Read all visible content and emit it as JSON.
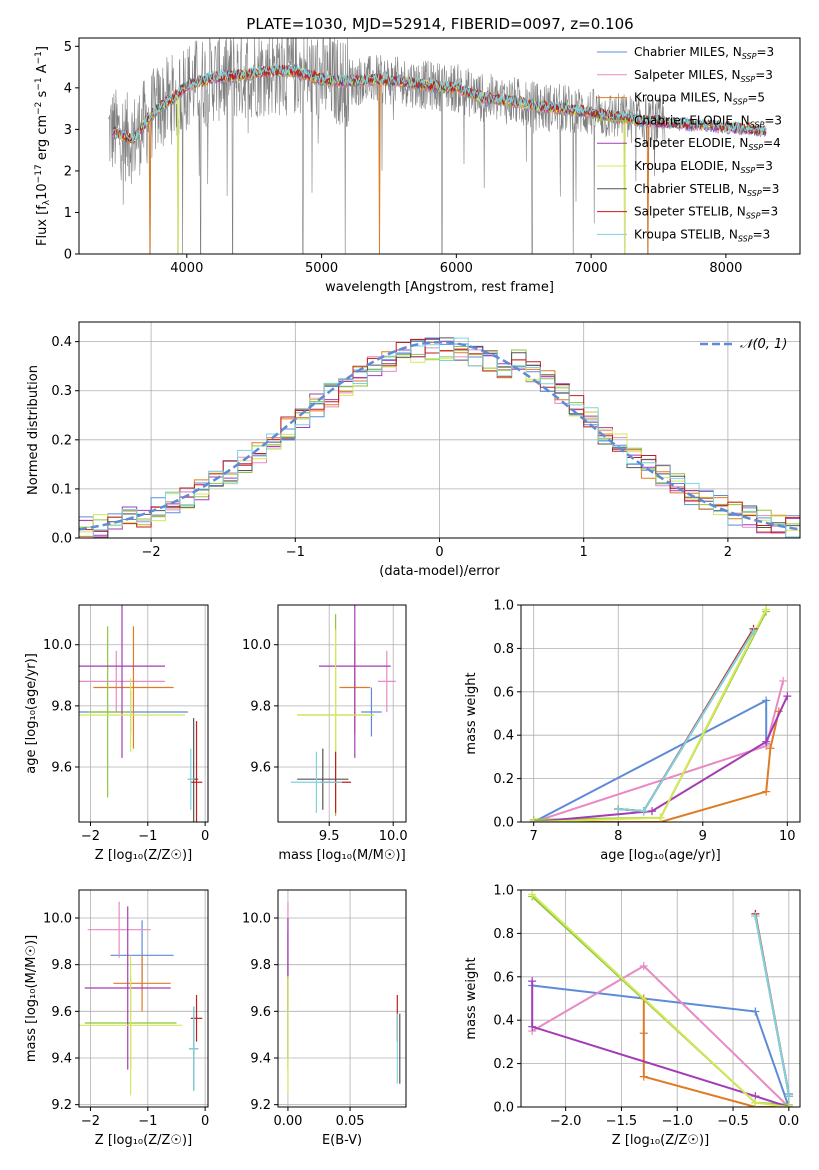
{
  "figure": {
    "title": "PLATE=1030, MJD=52914, FIBERID=0097, z=0.106"
  },
  "series": [
    {
      "name": "Chabrier MILES",
      "nssp": "3",
      "color": "#5d8bd8"
    },
    {
      "name": "Salpeter MILES",
      "nssp": "3",
      "color": "#e88ac3"
    },
    {
      "name": "Kroupa MILES",
      "nssp": "5",
      "color": "#e07b24"
    },
    {
      "name": "Chabrier ELODIE",
      "nssp": "3",
      "color": "#8ec63f"
    },
    {
      "name": "Salpeter ELODIE",
      "nssp": "4",
      "color": "#a43cb5"
    },
    {
      "name": "Kroupa ELODIE",
      "nssp": "3",
      "color": "#d4e85a"
    },
    {
      "name": "Chabrier STELIB",
      "nssp": "3",
      "color": "#555555"
    },
    {
      "name": "Salpeter STELIB",
      "nssp": "3",
      "color": "#c21e1e"
    },
    {
      "name": "Kroupa STELIB",
      "nssp": "3",
      "color": "#7fd3df"
    }
  ],
  "chart_data": [
    {
      "id": "spectrum",
      "type": "line",
      "xlabel": "wavelength [Angstrom, rest frame]",
      "ylabel_parts": [
        "Flux [f",
        "λ",
        "10",
        "−17",
        " erg cm",
        "−2",
        " s",
        "−1",
        " A",
        "−1",
        "]"
      ],
      "xlim": [
        3200,
        8550
      ],
      "ylim": [
        0,
        5.2
      ],
      "xticks": [
        4000,
        5000,
        6000,
        7000,
        8000
      ],
      "yticks": [
        0,
        1,
        2,
        3,
        4,
        5
      ],
      "grid": false,
      "legend": "right",
      "data_color": "#808080",
      "continuum": {
        "x": [
          3450,
          3600,
          3700,
          3800,
          3900,
          4000,
          4200,
          4400,
          4600,
          4800,
          5000,
          5200,
          5400,
          5600,
          5800,
          6000,
          6200,
          6400,
          6600,
          6800,
          7000,
          7200,
          7400,
          7600,
          7800,
          8000,
          8200,
          8300
        ],
        "y": [
          2.95,
          2.75,
          3.2,
          3.55,
          3.75,
          4.05,
          4.25,
          4.3,
          4.4,
          4.4,
          4.2,
          4.15,
          4.2,
          4.15,
          4.05,
          4.0,
          3.75,
          3.7,
          3.55,
          3.5,
          3.4,
          3.3,
          3.2,
          3.15,
          3.1,
          3.05,
          3.0,
          2.95
        ]
      },
      "absorption_lines": [
        3727,
        3934,
        3969,
        4102,
        4340,
        4861,
        5175,
        5430,
        5893,
        6563,
        6867,
        7250,
        7420
      ]
    },
    {
      "id": "residuals",
      "type": "bar",
      "xlabel": "(data-model)/error",
      "ylabel": "Normed distribution",
      "xlim": [
        -2.5,
        2.5
      ],
      "ylim": [
        0,
        0.44
      ],
      "xticks": [
        -2,
        -1,
        0,
        1,
        2
      ],
      "yticks": [
        0.0,
        0.1,
        0.2,
        0.3,
        0.4
      ],
      "grid": true,
      "legend": "top-right",
      "gaussian_label": "𝒩(0, 1)",
      "gaussian_color": "#5d8bd8",
      "bin_width": 0.1
    },
    {
      "id": "age-vs-Z",
      "type": "scatter",
      "xlabel": "Z [log₁₀(Z/Z☉)]",
      "ylabel": "age  [log₁₀(age/yr)]",
      "xlim": [
        -2.2,
        0.05
      ],
      "ylim": [
        9.42,
        10.13
      ],
      "xticks": [
        -2,
        -1,
        0
      ],
      "yticks": [
        9.6,
        9.8,
        10.0
      ],
      "grid": true,
      "points": [
        {
          "s": 0,
          "x": -1.3,
          "xe": 1.0,
          "y": 9.78,
          "ye": 0.07
        },
        {
          "s": 1,
          "x": -1.55,
          "xe": 0.85,
          "y": 9.88,
          "ye": 0.1
        },
        {
          "s": 2,
          "x": -1.25,
          "xe": 0.7,
          "y": 9.86,
          "ye": 0.2
        },
        {
          "s": 3,
          "x": -1.7,
          "xe": 0.35,
          "y": 9.78,
          "ye": 0.28
        },
        {
          "s": 4,
          "x": -1.45,
          "xe": 0.75,
          "y": 9.93,
          "ye": 0.3
        },
        {
          "s": 5,
          "x": -1.3,
          "xe": 0.95,
          "y": 9.77,
          "ye": 0.12
        },
        {
          "s": 6,
          "x": -0.2,
          "xe": 0.08,
          "y": 9.56,
          "ye": 0.2
        },
        {
          "s": 7,
          "x": -0.15,
          "xe": 0.1,
          "y": 9.55,
          "ye": 0.2
        },
        {
          "s": 8,
          "x": -0.25,
          "xe": 0.06,
          "y": 9.56,
          "ye": 0.1
        }
      ]
    },
    {
      "id": "age-vs-mass",
      "type": "scatter",
      "xlabel": "mass [log₁₀(M/M☉)]",
      "ylabel": "",
      "xlim": [
        9.1,
        10.1
      ],
      "ylim": [
        9.42,
        10.13
      ],
      "xticks": [
        9.5,
        10.0
      ],
      "yticks": [
        9.6,
        9.8,
        10.0
      ],
      "grid": true,
      "points": [
        {
          "s": 0,
          "x": 9.83,
          "xe": 0.08,
          "y": 9.78,
          "ye": 0.08
        },
        {
          "s": 1,
          "x": 9.95,
          "xe": 0.07,
          "y": 9.88,
          "ye": 0.1
        },
        {
          "s": 2,
          "x": 9.7,
          "xe": 0.12,
          "y": 9.86,
          "ye": 0.15
        },
        {
          "s": 3,
          "x": 9.55,
          "xe": 0.3,
          "y": 9.77,
          "ye": 0.33
        },
        {
          "s": 4,
          "x": 9.7,
          "xe": 0.28,
          "y": 9.93,
          "ye": 0.3
        },
        {
          "s": 5,
          "x": 9.55,
          "xe": 0.3,
          "y": 9.77,
          "ye": 0.28
        },
        {
          "s": 6,
          "x": 9.45,
          "xe": 0.2,
          "y": 9.56,
          "ye": 0.1
        },
        {
          "s": 7,
          "x": 9.55,
          "xe": 0.12,
          "y": 9.55,
          "ye": 0.1
        },
        {
          "s": 8,
          "x": 9.4,
          "xe": 0.2,
          "y": 9.55,
          "ye": 0.1
        }
      ]
    },
    {
      "id": "massweight-vs-age",
      "type": "line",
      "xlabel": "age  [log₁₀(age/yr)]",
      "ylabel": "mass weight",
      "xlim": [
        6.85,
        10.15
      ],
      "ylim": [
        0,
        1.0
      ],
      "xticks": [
        7,
        8,
        9,
        10
      ],
      "yticks": [
        0.0,
        0.2,
        0.4,
        0.6,
        0.8,
        1.0
      ],
      "grid": true,
      "series_points": [
        {
          "s": 0,
          "x": [
            7.0,
            9.75,
            9.75
          ],
          "y": [
            0.0,
            0.56,
            0.36
          ]
        },
        {
          "s": 1,
          "x": [
            7.0,
            9.75,
            9.95
          ],
          "y": [
            0.0,
            0.35,
            0.65
          ]
        },
        {
          "s": 2,
          "x": [
            7.0,
            8.5,
            9.75,
            9.8,
            9.9
          ],
          "y": [
            0.0,
            0.0,
            0.14,
            0.34,
            0.51
          ]
        },
        {
          "s": 3,
          "x": [
            7.0,
            8.5,
            9.75
          ],
          "y": [
            0.01,
            0.02,
            0.97
          ]
        },
        {
          "s": 4,
          "x": [
            7.0,
            8.4,
            9.75,
            10.0
          ],
          "y": [
            0.0,
            0.05,
            0.37,
            0.58
          ]
        },
        {
          "s": 5,
          "x": [
            7.0,
            8.5,
            9.75
          ],
          "y": [
            0.0,
            0.02,
            0.98
          ]
        },
        {
          "s": 6,
          "x": [
            8.0,
            8.3,
            9.6
          ],
          "y": [
            0.06,
            0.05,
            0.88
          ]
        },
        {
          "s": 7,
          "x": [
            8.0,
            8.3,
            9.6
          ],
          "y": [
            0.06,
            0.05,
            0.89
          ]
        },
        {
          "s": 8,
          "x": [
            8.0,
            8.3,
            9.6
          ],
          "y": [
            0.06,
            0.05,
            0.88
          ]
        }
      ]
    },
    {
      "id": "mass-vs-Z",
      "type": "scatter",
      "xlabel": "Z [log₁₀(Z/Z☉)]",
      "ylabel": "mass [log₁₀(M/M☉)]",
      "xlim": [
        -2.2,
        0.05
      ],
      "ylim": [
        9.19,
        10.12
      ],
      "xticks": [
        -2,
        -1,
        0
      ],
      "yticks": [
        9.2,
        9.4,
        9.6,
        9.8,
        10.0
      ],
      "grid": true,
      "points": [
        {
          "s": 0,
          "x": -1.1,
          "xe": 0.55,
          "y": 9.84,
          "ye": 0.15
        },
        {
          "s": 1,
          "x": -1.5,
          "xe": 0.55,
          "y": 9.95,
          "ye": 0.12
        },
        {
          "s": 2,
          "x": -1.1,
          "xe": 0.5,
          "y": 9.72,
          "ye": 0.12
        },
        {
          "s": 3,
          "x": -1.3,
          "xe": 0.8,
          "y": 9.55,
          "ye": 0.2
        },
        {
          "s": 4,
          "x": -1.35,
          "xe": 0.75,
          "y": 9.7,
          "ye": 0.35
        },
        {
          "s": 5,
          "x": -1.3,
          "xe": 0.9,
          "y": 9.54,
          "ye": 0.3
        },
        {
          "s": 6,
          "x": -0.2,
          "xe": 0.08,
          "y": 9.44,
          "ye": 0.18
        },
        {
          "s": 7,
          "x": -0.15,
          "xe": 0.1,
          "y": 9.57,
          "ye": 0.1
        },
        {
          "s": 8,
          "x": -0.2,
          "xe": 0.08,
          "y": 9.44,
          "ye": 0.18
        }
      ]
    },
    {
      "id": "mass-vs-ebv",
      "type": "scatter",
      "xlabel": "E(B-V)",
      "ylabel": "",
      "xlim": [
        -0.008,
        0.095
      ],
      "ylim": [
        9.19,
        10.12
      ],
      "xticks": [
        0.0,
        0.05
      ],
      "yticks": [
        9.2,
        9.4,
        9.6,
        9.8,
        10.0
      ],
      "grid": true,
      "points": [
        {
          "s": 0,
          "x": 0.0,
          "xe": 0,
          "y": 9.84,
          "ye": 0.1
        },
        {
          "s": 1,
          "x": 0.0,
          "xe": 0,
          "y": 9.95,
          "ye": 0.12
        },
        {
          "s": 2,
          "x": 0.0,
          "xe": 0,
          "y": 9.72,
          "ye": 0.12
        },
        {
          "s": 3,
          "x": 0.0,
          "xe": 0,
          "y": 9.55,
          "ye": 0.2
        },
        {
          "s": 4,
          "x": 0.0,
          "xe": 0,
          "y": 9.7,
          "ye": 0.3
        },
        {
          "s": 5,
          "x": 0.0,
          "xe": 0,
          "y": 9.5,
          "ye": 0.25
        },
        {
          "s": 6,
          "x": 0.09,
          "xe": 0,
          "y": 9.44,
          "ye": 0.15
        },
        {
          "s": 7,
          "x": 0.088,
          "xe": 0,
          "y": 9.57,
          "ye": 0.1
        },
        {
          "s": 8,
          "x": 0.088,
          "xe": 0,
          "y": 9.44,
          "ye": 0.15
        }
      ]
    },
    {
      "id": "massweight-vs-Z",
      "type": "line",
      "xlabel": "Z [log₁₀(Z/Z☉)]",
      "ylabel": "mass weight",
      "xlim": [
        -2.4,
        0.1
      ],
      "ylim": [
        0,
        1.0
      ],
      "xticks": [
        -2.0,
        -1.5,
        -1.0,
        -0.5,
        0.0
      ],
      "yticks": [
        0.0,
        0.2,
        0.4,
        0.6,
        0.8,
        1.0
      ],
      "grid": true,
      "series_points": [
        {
          "s": 0,
          "x": [
            -2.3,
            -0.3,
            0.0
          ],
          "y": [
            0.56,
            0.44,
            0.0
          ]
        },
        {
          "s": 1,
          "x": [
            -2.3,
            -1.3,
            0.0
          ],
          "y": [
            0.35,
            0.65,
            0.0
          ]
        },
        {
          "s": 2,
          "x": [
            -1.3,
            -1.3,
            -1.3,
            -0.3,
            0.0
          ],
          "y": [
            0.5,
            0.34,
            0.14,
            0.0,
            0.0
          ]
        },
        {
          "s": 3,
          "x": [
            -2.3,
            -0.3,
            0.0
          ],
          "y": [
            0.97,
            0.02,
            0.01
          ]
        },
        {
          "s": 4,
          "x": [
            -2.3,
            -2.3,
            -0.3,
            0.0
          ],
          "y": [
            0.58,
            0.37,
            0.05,
            0.0
          ]
        },
        {
          "s": 5,
          "x": [
            -2.3,
            -0.3,
            0.0
          ],
          "y": [
            0.98,
            0.02,
            0.0
          ]
        },
        {
          "s": 6,
          "x": [
            -0.3,
            0.0,
            0.0
          ],
          "y": [
            0.88,
            0.06,
            0.05
          ]
        },
        {
          "s": 7,
          "x": [
            -0.3,
            0.0,
            0.0
          ],
          "y": [
            0.89,
            0.06,
            0.05
          ]
        },
        {
          "s": 8,
          "x": [
            -0.3,
            0.0,
            0.0
          ],
          "y": [
            0.88,
            0.06,
            0.05
          ]
        }
      ]
    }
  ]
}
